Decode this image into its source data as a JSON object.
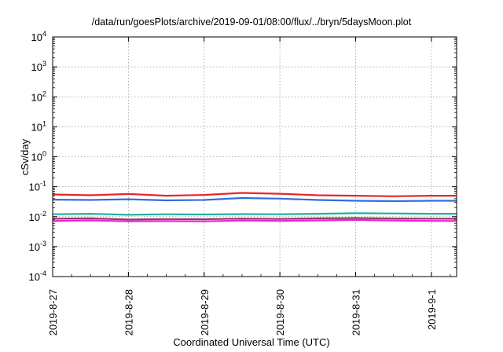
{
  "chart_data": {
    "type": "line",
    "title": "/data/run/goesPlots/archive/2019-09-01/08:00/flux/../bryn/5daysMoon.plot",
    "xlabel": "Coordinated Universal Time (UTC)",
    "ylabel": "cSv/day",
    "yscale": "log",
    "ylim": [
      0.0001,
      10000
    ],
    "xlim": [
      "2019-08-27 00:00",
      "2019-09-01 08:00"
    ],
    "grid": true,
    "legend": "none",
    "xticks": [
      "2019-8-27",
      "2019-8-28",
      "2019-8-29",
      "2019-8-30",
      "2019-8-31",
      "2019-9-1"
    ],
    "yticks": [
      {
        "base": "10",
        "exp": "-4"
      },
      {
        "base": "10",
        "exp": "-3"
      },
      {
        "base": "10",
        "exp": "-2"
      },
      {
        "base": "10",
        "exp": "-1"
      },
      {
        "base": "10",
        "exp": "0"
      },
      {
        "base": "10",
        "exp": "1"
      },
      {
        "base": "10",
        "exp": "2"
      },
      {
        "base": "10",
        "exp": "3"
      },
      {
        "base": "10",
        "exp": "4"
      }
    ],
    "series": [
      {
        "color": "#e8262a",
        "x": [
          "2019-08-27 00:00",
          "2019-08-27 12:00",
          "2019-08-28 00:00",
          "2019-08-28 12:00",
          "2019-08-29 00:00",
          "2019-08-29 12:00",
          "2019-08-30 00:00",
          "2019-08-30 12:00",
          "2019-08-31 00:00",
          "2019-08-31 12:00",
          "2019-09-01 00:00",
          "2019-09-01 08:00"
        ],
        "values": [
          0.055,
          0.052,
          0.057,
          0.05,
          0.053,
          0.062,
          0.058,
          0.052,
          0.05,
          0.048,
          0.05,
          0.05
        ]
      },
      {
        "color": "#2f6fde",
        "x": [
          "2019-08-27 00:00",
          "2019-08-27 12:00",
          "2019-08-28 00:00",
          "2019-08-28 12:00",
          "2019-08-29 00:00",
          "2019-08-29 12:00",
          "2019-08-30 00:00",
          "2019-08-30 12:00",
          "2019-08-31 00:00",
          "2019-08-31 12:00",
          "2019-09-01 00:00",
          "2019-09-01 08:00"
        ],
        "values": [
          0.037,
          0.036,
          0.038,
          0.035,
          0.036,
          0.042,
          0.04,
          0.036,
          0.034,
          0.033,
          0.034,
          0.034
        ]
      },
      {
        "color": "#20b39a",
        "x": [
          "2019-08-27 00:00",
          "2019-08-27 12:00",
          "2019-08-28 00:00",
          "2019-08-28 12:00",
          "2019-08-29 00:00",
          "2019-08-29 12:00",
          "2019-08-30 00:00",
          "2019-08-30 12:00",
          "2019-08-31 00:00",
          "2019-08-31 12:00",
          "2019-09-01 00:00",
          "2019-09-01 08:00"
        ],
        "values": [
          0.012,
          0.0125,
          0.0115,
          0.012,
          0.0118,
          0.0122,
          0.012,
          0.0125,
          0.013,
          0.0128,
          0.0125,
          0.0125
        ]
      },
      {
        "color": "#8c3a6b",
        "x": [
          "2019-08-27 00:00",
          "2019-08-27 12:00",
          "2019-08-28 00:00",
          "2019-08-28 12:00",
          "2019-08-29 00:00",
          "2019-08-29 12:00",
          "2019-08-30 00:00",
          "2019-08-30 12:00",
          "2019-08-31 00:00",
          "2019-08-31 12:00",
          "2019-09-01 00:00",
          "2019-09-01 08:00"
        ],
        "values": [
          0.0085,
          0.0088,
          0.008,
          0.0083,
          0.0082,
          0.0086,
          0.0084,
          0.0088,
          0.009,
          0.0087,
          0.0085,
          0.0085
        ]
      },
      {
        "color": "#ee1fd2",
        "x": [
          "2019-08-27 00:00",
          "2019-08-27 12:00",
          "2019-08-28 00:00",
          "2019-08-28 12:00",
          "2019-08-29 00:00",
          "2019-08-29 12:00",
          "2019-08-30 00:00",
          "2019-08-30 12:00",
          "2019-08-31 00:00",
          "2019-08-31 12:00",
          "2019-09-01 00:00",
          "2019-09-01 08:00"
        ],
        "values": [
          0.0072,
          0.0075,
          0.007,
          0.0071,
          0.007,
          0.0074,
          0.0072,
          0.0075,
          0.0078,
          0.0074,
          0.0072,
          0.0072
        ]
      }
    ]
  }
}
